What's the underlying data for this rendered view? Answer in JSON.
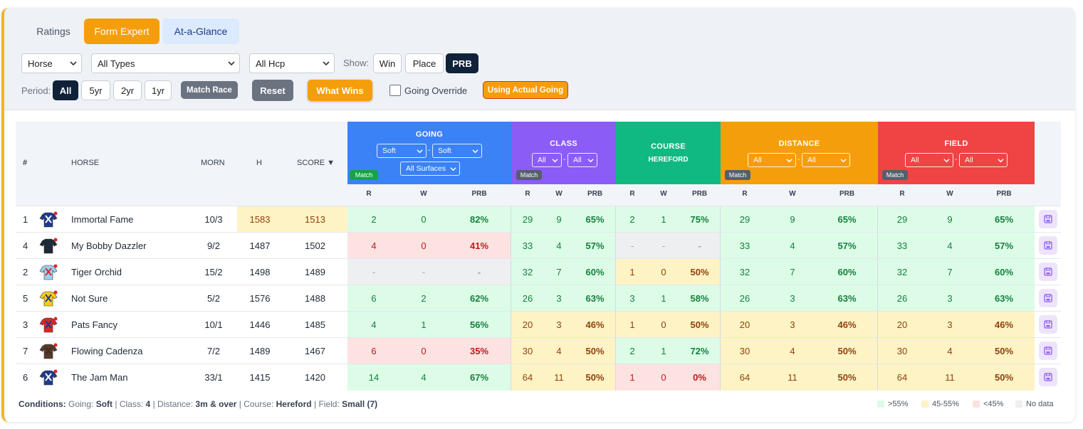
{
  "tabs": [
    "Ratings",
    "Form Expert",
    "At-a-Glance"
  ],
  "filters": {
    "entity": "Horse",
    "types": "All Types",
    "hcp": "All Hcp",
    "show_label": "Show:",
    "show": [
      "Win",
      "Place",
      "PRB"
    ],
    "period_label": "Period:",
    "periods": [
      "All",
      "5yr",
      "2yr",
      "1yr"
    ],
    "match_race": "Match Race",
    "reset": "Reset",
    "what_wins": "What Wins",
    "going_override": "Going Override",
    "using_actual_going": "Using Actual Going"
  },
  "table": {
    "cols": {
      "rank": "#",
      "horse": "HORSE",
      "morn": "MORN",
      "h": "H",
      "score": "SCORE ▼"
    },
    "groups": {
      "going": {
        "title": "GOING",
        "sel1": "Soft",
        "sel2": "Soft",
        "surfaces": "All Surfaces",
        "match": "Match"
      },
      "class": {
        "title": "CLASS",
        "sel1": "All",
        "sel2": "All",
        "match": "Match"
      },
      "course": {
        "title": "COURSE",
        "sub": "HEREFORD"
      },
      "distance": {
        "title": "DISTANCE",
        "sel1": "All",
        "sel2": "All",
        "match": "Match"
      },
      "field": {
        "title": "FIELD",
        "sel1": "All",
        "sel2": "All",
        "match": "Match"
      }
    },
    "sub": {
      "r": "R",
      "w": "W",
      "prb": "PRB"
    },
    "sep": "-",
    "rows": [
      {
        "rank": "1",
        "name": "Immortal Fame",
        "morn": "10/3",
        "h": "1583",
        "score": "1513",
        "going": [
          "2",
          "0",
          "82%"
        ],
        "class": [
          "29",
          "9",
          "65%"
        ],
        "course": [
          "2",
          "1",
          "75%"
        ],
        "distance": [
          "29",
          "9",
          "65%"
        ],
        "field": [
          "29",
          "9",
          "65%"
        ]
      },
      {
        "rank": "4",
        "name": "My Bobby Dazzler",
        "morn": "9/2",
        "h": "1487",
        "score": "1502",
        "going": [
          "4",
          "0",
          "41%"
        ],
        "class": [
          "33",
          "4",
          "57%"
        ],
        "course": [
          "-",
          "-",
          "-"
        ],
        "distance": [
          "33",
          "4",
          "57%"
        ],
        "field": [
          "33",
          "4",
          "57%"
        ]
      },
      {
        "rank": "2",
        "name": "Tiger Orchid",
        "morn": "15/2",
        "h": "1498",
        "score": "1489",
        "going": [
          "-",
          "-",
          "-"
        ],
        "class": [
          "32",
          "7",
          "60%"
        ],
        "course": [
          "1",
          "0",
          "50%"
        ],
        "distance": [
          "32",
          "7",
          "60%"
        ],
        "field": [
          "32",
          "7",
          "60%"
        ]
      },
      {
        "rank": "5",
        "name": "Not Sure",
        "morn": "5/2",
        "h": "1576",
        "score": "1488",
        "going": [
          "6",
          "2",
          "62%"
        ],
        "class": [
          "26",
          "3",
          "63%"
        ],
        "course": [
          "3",
          "1",
          "58%"
        ],
        "distance": [
          "26",
          "3",
          "63%"
        ],
        "field": [
          "26",
          "3",
          "63%"
        ]
      },
      {
        "rank": "3",
        "name": "Pats Fancy",
        "morn": "10/1",
        "h": "1446",
        "score": "1485",
        "going": [
          "4",
          "1",
          "56%"
        ],
        "class": [
          "20",
          "3",
          "46%"
        ],
        "course": [
          "1",
          "0",
          "50%"
        ],
        "distance": [
          "20",
          "3",
          "46%"
        ],
        "field": [
          "20",
          "3",
          "46%"
        ]
      },
      {
        "rank": "7",
        "name": "Flowing Cadenza",
        "morn": "7/2",
        "h": "1489",
        "score": "1467",
        "going": [
          "6",
          "0",
          "35%"
        ],
        "class": [
          "30",
          "4",
          "50%"
        ],
        "course": [
          "2",
          "1",
          "72%"
        ],
        "distance": [
          "30",
          "4",
          "50%"
        ],
        "field": [
          "30",
          "4",
          "50%"
        ]
      },
      {
        "rank": "6",
        "name": "The Jam Man",
        "morn": "33/1",
        "h": "1415",
        "score": "1420",
        "going": [
          "14",
          "4",
          "67%"
        ],
        "class": [
          "64",
          "11",
          "50%"
        ],
        "course": [
          "1",
          "0",
          "0%"
        ],
        "distance": [
          "64",
          "11",
          "50%"
        ],
        "field": [
          "64",
          "11",
          "50%"
        ]
      }
    ]
  },
  "footer": {
    "conditions_label": "Conditions:",
    "going_label": "Going:",
    "going": "Soft",
    "class_label": "Class:",
    "class": "4",
    "distance_label": "Distance:",
    "distance": "3m & over",
    "course_label": "Course:",
    "course": "Hereford",
    "field_label": "Field:",
    "field": "Small (7)",
    "divider": "|",
    "legend": [
      ">55%",
      "45-55%",
      "<45%",
      "No data"
    ]
  },
  "colors": {
    "accent": "#f59e0b",
    "going": "#3b82f6",
    "class": "#8b5cf6",
    "course": "#10b981",
    "distance": "#f59e0b",
    "field": "#ef4444",
    "good": "#dcfce7",
    "mid": "#fdf3c4",
    "bad": "#fde2e2",
    "nodata": "#eeeff1"
  }
}
